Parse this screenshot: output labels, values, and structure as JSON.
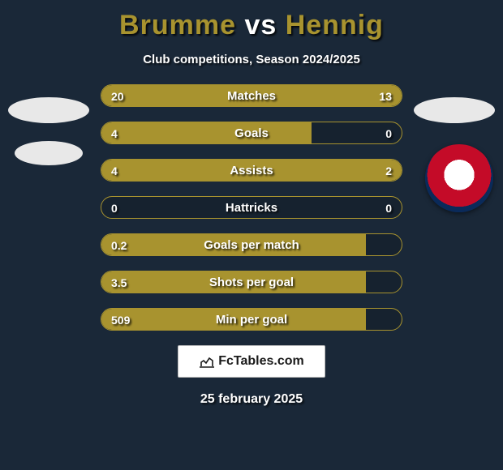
{
  "title": {
    "p1": "Brumme",
    "vs": "vs",
    "p2": "Hennig",
    "p1_color": "#a8932f",
    "vs_color": "#ffffff",
    "p2_color": "#a8932f",
    "fontsize": 34
  },
  "subtitle": "Club competitions, Season 2024/2025",
  "colors": {
    "left_bar": "#a8932f",
    "right_bar": "#a8932f",
    "border": "#a8932f",
    "bg": "#1a2838"
  },
  "bars": [
    {
      "label": "Matches",
      "left": "20",
      "right": "13",
      "l_pct": 61,
      "r_pct": 39
    },
    {
      "label": "Goals",
      "left": "4",
      "right": "0",
      "l_pct": 70,
      "r_pct": 0
    },
    {
      "label": "Assists",
      "left": "4",
      "right": "2",
      "l_pct": 67,
      "r_pct": 33
    },
    {
      "label": "Hattricks",
      "left": "0",
      "right": "0",
      "l_pct": 0,
      "r_pct": 0
    },
    {
      "label": "Goals per match",
      "left": "0.2",
      "right": "",
      "l_pct": 88,
      "r_pct": 0
    },
    {
      "label": "Shots per goal",
      "left": "3.5",
      "right": "",
      "l_pct": 88,
      "r_pct": 0
    },
    {
      "label": "Min per goal",
      "left": "509",
      "right": "",
      "l_pct": 88,
      "r_pct": 0
    }
  ],
  "footer": {
    "site": "FcTables.com",
    "date": "25 february 2025"
  }
}
